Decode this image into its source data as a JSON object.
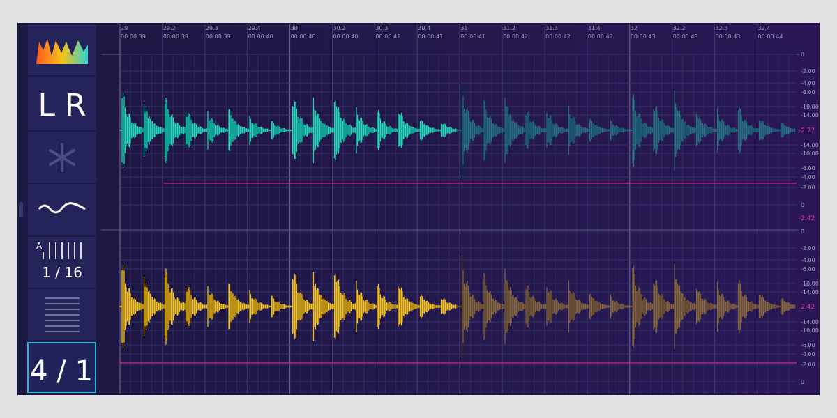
{
  "sidebar": {
    "channel_mode": "L R",
    "grid_label": "A",
    "grid_division": "1 / 16",
    "time_signature": "4 / 1"
  },
  "timeline": {
    "markers": [
      {
        "position": "29",
        "time": "00:00:39"
      },
      {
        "position": "29.2",
        "time": "00:00:39"
      },
      {
        "position": "29.3",
        "time": "00:00:39"
      },
      {
        "position": "29.4",
        "time": "00:00:40"
      },
      {
        "position": "30",
        "time": "00:00:40"
      },
      {
        "position": "30.2",
        "time": "00:00:40"
      },
      {
        "position": "30.3",
        "time": "00:00:41"
      },
      {
        "position": "30.4",
        "time": "00:00:41"
      },
      {
        "position": "31",
        "time": "00:00:41"
      },
      {
        "position": "31.2",
        "time": "00:00:42"
      },
      {
        "position": "31.3",
        "time": "00:00:42"
      },
      {
        "position": "31.4",
        "time": "00:00:42"
      },
      {
        "position": "32",
        "time": "00:00:43"
      },
      {
        "position": "32.2",
        "time": "00:00:43"
      },
      {
        "position": "32.3",
        "time": "00:00:43"
      },
      {
        "position": "32.4",
        "time": "00:00:44"
      }
    ]
  },
  "tracks": [
    {
      "scale_labels": [
        "0",
        "-2.00",
        "-4.00",
        "-6.00",
        "-10.00",
        "-14.00",
        "-14.00",
        "-10.00",
        "-6.00",
        "-4.00",
        "-2.00",
        "0"
      ],
      "level": "-2.77",
      "level_below": "-2.42"
    },
    {
      "scale_labels": [
        "0",
        "-2.00",
        "-4.00",
        "-6.00",
        "-10.00",
        "-14.00",
        "-14.00",
        "-10.00",
        "-6.00",
        "-4.00",
        "-2.00",
        "0"
      ],
      "level": "-2.42"
    }
  ]
}
